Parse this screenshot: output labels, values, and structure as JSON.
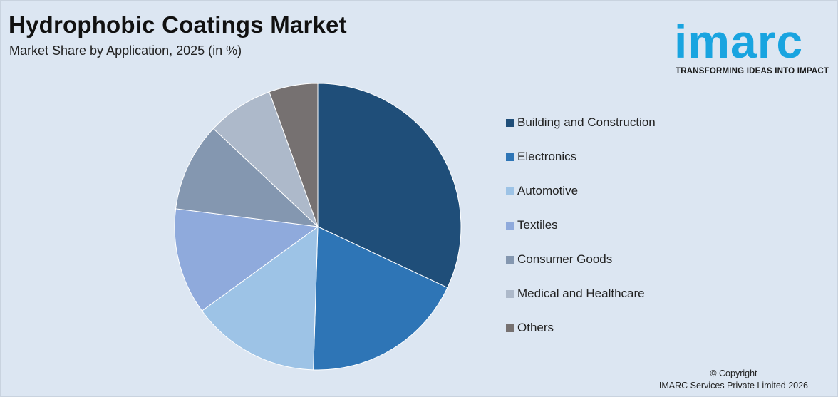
{
  "title": "Hydrophobic Coatings Market",
  "subtitle": "Market Share by Application, 2025 (in %)",
  "logo": {
    "word": "imarc",
    "tagline": "TRANSFORMING IDEAS INTO IMPACT",
    "color": "#19a4e0"
  },
  "copyright": {
    "line1": "© Copyright",
    "line2": "IMARC Services Private Limited 2026"
  },
  "chart_data": {
    "type": "pie",
    "title": "Hydrophobic Coatings Market",
    "subtitle": "Market Share by Application, 2025 (in %)",
    "legend_position": "right",
    "start_angle": "12 o'clock",
    "direction": "clockwise",
    "categories": [
      "Building and Construction",
      "Electronics",
      "Automotive",
      "Textiles",
      "Consumer Goods",
      "Medical and Healthcare",
      "Others"
    ],
    "values": [
      32,
      18.5,
      14.5,
      12,
      10,
      7.5,
      5.5
    ],
    "colors": [
      "#1f4e79",
      "#2e75b6",
      "#9dc3e6",
      "#8faadc",
      "#8497b0",
      "#adb9ca",
      "#767171"
    ]
  }
}
